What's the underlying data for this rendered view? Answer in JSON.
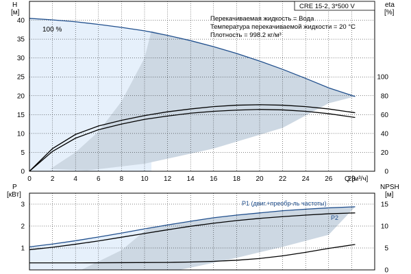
{
  "info_box": {
    "model": "CRE 15-2, 3*500 V",
    "lines": [
      "Перекачиваемая жидкость = Вода",
      "Температура перекачиваемой жидкости = 20 °C",
      "Плотность = 998.2 кг/м³"
    ]
  },
  "colors": {
    "curve_dark_blue": "#1f4e8c",
    "shade_light_blue": "#e6f0fb",
    "shade_grey_blue": "#cdd8e3",
    "grid": "#000000"
  },
  "chart_data": [
    {
      "id": "head-efficiency",
      "type": "line",
      "xlabel": "Q [м³/ч]",
      "ylabel_left": [
        "H",
        "[м]"
      ],
      "ylabel_right": [
        "eta",
        "[%]"
      ],
      "xlim": [
        0,
        30
      ],
      "ylim_left": [
        0,
        45
      ],
      "ylim_right": [
        0,
        180
      ],
      "x_ticks": [
        0,
        2,
        4,
        6,
        8,
        10,
        12,
        14,
        16,
        18,
        20,
        22,
        24,
        26,
        28
      ],
      "y_ticks_left": [
        0,
        5,
        10,
        15,
        20,
        25,
        30,
        35,
        40
      ],
      "y_ticks_right": [
        0,
        20,
        40,
        60,
        80,
        100
      ],
      "grid": true,
      "annotation": "100 %",
      "series": [
        {
          "axis": "left",
          "color": "#1f4e8c",
          "x": [
            0,
            2,
            4,
            6,
            8,
            10,
            12,
            14,
            16,
            18,
            20,
            22,
            24,
            26,
            28.3
          ],
          "y": [
            40.5,
            40.1,
            39.6,
            38.9,
            38.1,
            37.2,
            36,
            34.6,
            33,
            31.2,
            29.2,
            27,
            24.6,
            22.1,
            19.8
          ]
        },
        {
          "axis": "right",
          "x": [
            0,
            2,
            4,
            6,
            8,
            10,
            12,
            14,
            16,
            18,
            20,
            22,
            24,
            26,
            28.3
          ],
          "y": [
            0,
            24,
            39,
            48,
            54,
            59,
            63,
            66,
            68.5,
            70,
            70.5,
            70,
            68.5,
            66,
            62
          ]
        },
        {
          "axis": "right",
          "x": [
            0,
            2,
            4,
            6,
            8,
            10,
            12,
            14,
            16,
            18,
            20,
            22,
            24,
            26,
            28.3
          ],
          "y": [
            0,
            21,
            35,
            44,
            50,
            55,
            58.5,
            61.5,
            63.5,
            64.8,
            65.5,
            65,
            63.5,
            61,
            57
          ]
        }
      ]
    },
    {
      "id": "power-npsh",
      "type": "line",
      "xlabel": "",
      "ylabel_left": [
        "P",
        "[кВт]"
      ],
      "ylabel_right": [
        "NPSH",
        "[м]"
      ],
      "xlim": [
        0,
        30
      ],
      "ylim_left": [
        0,
        3.5
      ],
      "ylim_right": [
        0,
        17.5
      ],
      "y_ticks_left": [
        1,
        2,
        3
      ],
      "y_ticks_right": [
        0,
        5,
        10,
        15
      ],
      "grid": true,
      "series": [
        {
          "name": "P1 (двиг.+преобр-ль частоты)",
          "axis": "left",
          "color": "#1f4e8c",
          "x": [
            0,
            2,
            4,
            6,
            8,
            10,
            12,
            14,
            16,
            18,
            20,
            22,
            24,
            26,
            28.3
          ],
          "y": [
            1.05,
            1.18,
            1.33,
            1.5,
            1.68,
            1.87,
            2.05,
            2.22,
            2.38,
            2.5,
            2.6,
            2.7,
            2.77,
            2.83,
            2.88
          ]
        },
        {
          "name": "P2",
          "axis": "left",
          "x": [
            0,
            2,
            4,
            6,
            8,
            10,
            12,
            14,
            16,
            18,
            20,
            22,
            24,
            26,
            28.3
          ],
          "y": [
            0.92,
            1.03,
            1.17,
            1.32,
            1.49,
            1.66,
            1.83,
            1.99,
            2.13,
            2.25,
            2.35,
            2.43,
            2.5,
            2.56,
            2.6
          ]
        },
        {
          "axis": "right",
          "x": [
            0,
            4,
            8,
            12,
            14,
            16,
            18,
            20,
            22,
            24,
            26,
            28.3
          ],
          "y": [
            1.6,
            1.6,
            1.65,
            1.7,
            1.8,
            1.95,
            2.2,
            2.6,
            3.2,
            4,
            4.9,
            5.8
          ]
        }
      ]
    }
  ]
}
